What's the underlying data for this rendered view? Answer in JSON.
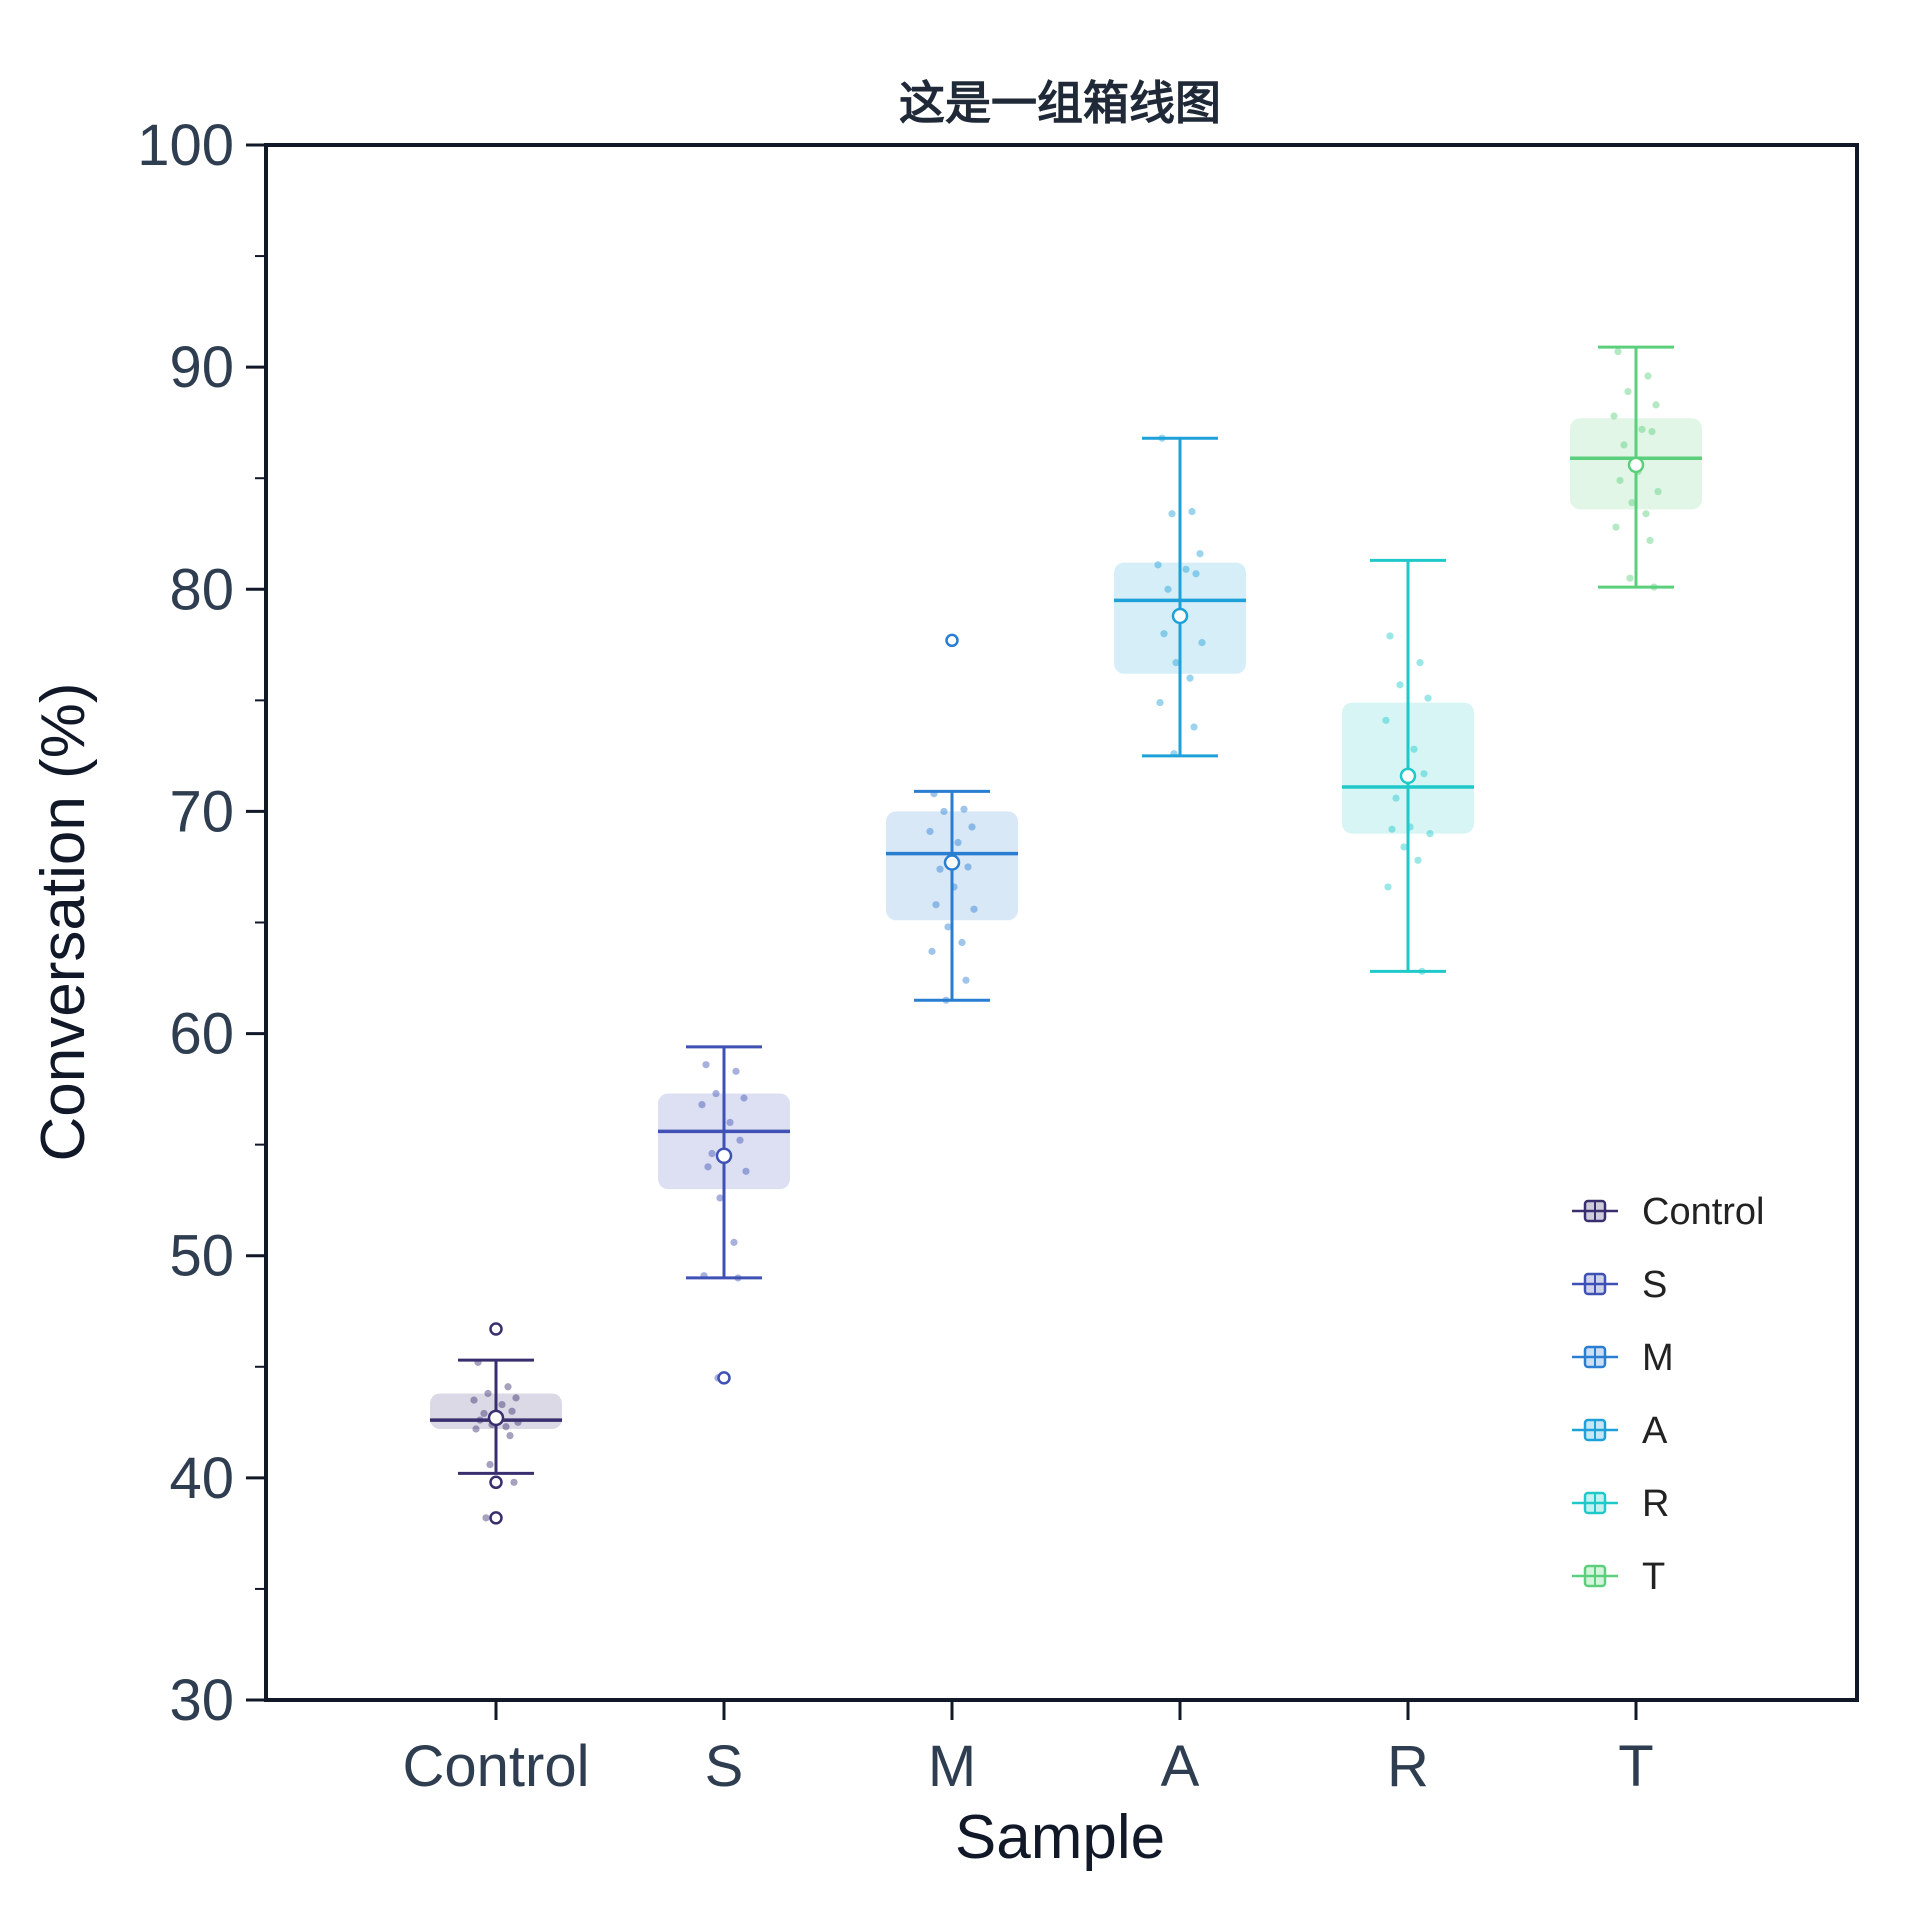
{
  "chart_data": {
    "type": "box",
    "title": "这是一组箱线图",
    "xlabel": "Sample",
    "ylabel": "Conversation (%)",
    "ylim": [
      30,
      100
    ],
    "yticks": [
      "30",
      "40",
      "50",
      "60",
      "70",
      "80",
      "90",
      "100"
    ],
    "grid": false,
    "legend_position": "lower-right",
    "categories": [
      "Control",
      "S",
      "M",
      "A",
      "R",
      "T"
    ],
    "series": [
      {
        "name": "Control",
        "color": "#3a2f6e",
        "whisker_low": 40.2,
        "q1": 42.2,
        "median": 42.6,
        "q3": 43.8,
        "whisker_high": 45.3,
        "mean": 42.7,
        "outliers": [
          46.7,
          39.8,
          38.2
        ],
        "points": [
          45.2,
          44.1,
          43.8,
          43.6,
          43.5,
          43.3,
          43.0,
          42.9,
          42.7,
          42.6,
          42.5,
          42.4,
          42.3,
          42.2,
          41.9,
          40.6,
          39.8,
          38.2
        ]
      },
      {
        "name": "S",
        "color": "#3f51b5",
        "whisker_low": 49.0,
        "q1": 53.0,
        "median": 55.6,
        "q3": 57.3,
        "whisker_high": 59.4,
        "mean": 54.5,
        "outliers": [
          44.5
        ],
        "points": [
          58.6,
          58.3,
          57.3,
          57.1,
          56.8,
          56.0,
          55.2,
          54.6,
          54.4,
          54.0,
          53.8,
          52.6,
          50.6,
          49.1,
          49.0,
          44.5
        ]
      },
      {
        "name": "M",
        "color": "#2a7ed2",
        "whisker_low": 61.5,
        "q1": 65.1,
        "median": 68.1,
        "q3": 70.0,
        "whisker_high": 70.9,
        "mean": 67.7,
        "outliers": [
          77.7
        ],
        "points": [
          70.8,
          70.1,
          70.0,
          69.3,
          69.1,
          68.6,
          67.5,
          67.4,
          66.6,
          65.8,
          65.6,
          64.8,
          64.1,
          63.7,
          62.4,
          61.5
        ]
      },
      {
        "name": "A",
        "color": "#1ea0d8",
        "whisker_low": 72.5,
        "q1": 76.2,
        "median": 79.5,
        "q3": 81.2,
        "whisker_high": 86.8,
        "mean": 78.8,
        "outliers": [],
        "points": [
          86.8,
          83.5,
          83.4,
          81.6,
          81.1,
          80.9,
          80.7,
          80.0,
          79.0,
          78.0,
          77.6,
          76.7,
          76.0,
          74.9,
          73.8,
          72.6
        ]
      },
      {
        "name": "R",
        "color": "#20c9c9",
        "whisker_low": 62.8,
        "q1": 69.0,
        "median": 71.1,
        "q3": 74.9,
        "whisker_high": 81.3,
        "mean": 71.6,
        "outliers": [],
        "points": [
          77.9,
          76.7,
          75.7,
          75.1,
          74.1,
          72.8,
          71.7,
          70.6,
          69.3,
          69.2,
          69.0,
          68.4,
          67.8,
          66.6,
          62.8
        ]
      },
      {
        "name": "T",
        "color": "#5ccf7c",
        "whisker_low": 80.1,
        "q1": 83.6,
        "median": 85.9,
        "q3": 87.7,
        "whisker_high": 90.9,
        "mean": 85.6,
        "outliers": [],
        "points": [
          90.7,
          89.6,
          88.9,
          88.3,
          87.8,
          87.2,
          87.1,
          86.5,
          85.3,
          84.9,
          84.4,
          83.9,
          83.4,
          82.8,
          82.2,
          80.5,
          80.1
        ]
      }
    ]
  }
}
